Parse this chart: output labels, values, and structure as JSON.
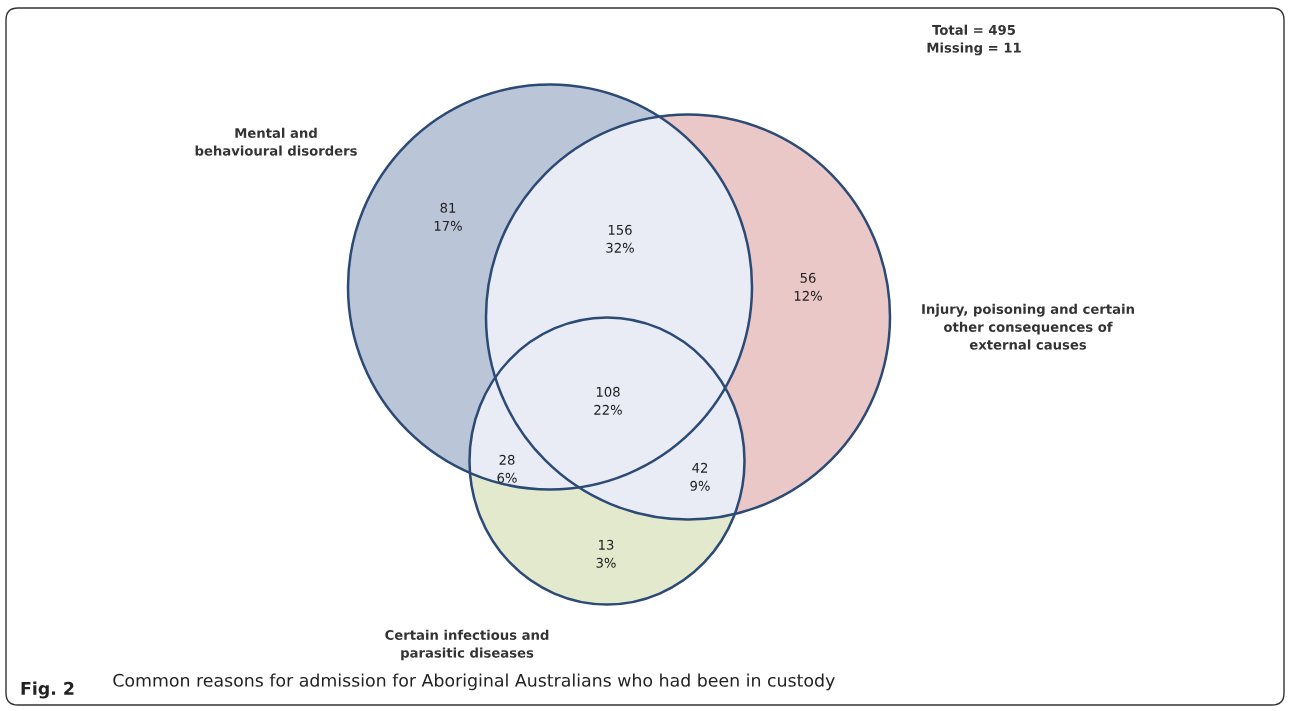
{
  "chart_data": {
    "type": "other",
    "title": "Fig. 2 Common reasons for admission for Aboriginal Australians who had been in custody",
    "categories": [
      null,
      null,
      null,
      null,
      null,
      null,
      null
    ],
    "values": [
      81,
      156,
      56,
      108,
      28,
      42,
      13
    ],
    "data_labels": true,
    "colors": [
      "#bac6d8",
      "#e9ecf5",
      "#eac8c8",
      "#e9ecf5",
      "#e9ecf5",
      "#e9ecf5",
      "#e2e9cd"
    ],
    "annotations": [
      "Mental and\nbehavioural disorders",
      "Injury, poisoning and certain\nother consequences of\nexternal causes",
      "Certain infectious and\nparasitic diseases",
      "Total = 495\nMissing = 11",
      "17%",
      "32%",
      "12%",
      "22%",
      "6%",
      "9%",
      "3%"
    ]
  }
}
